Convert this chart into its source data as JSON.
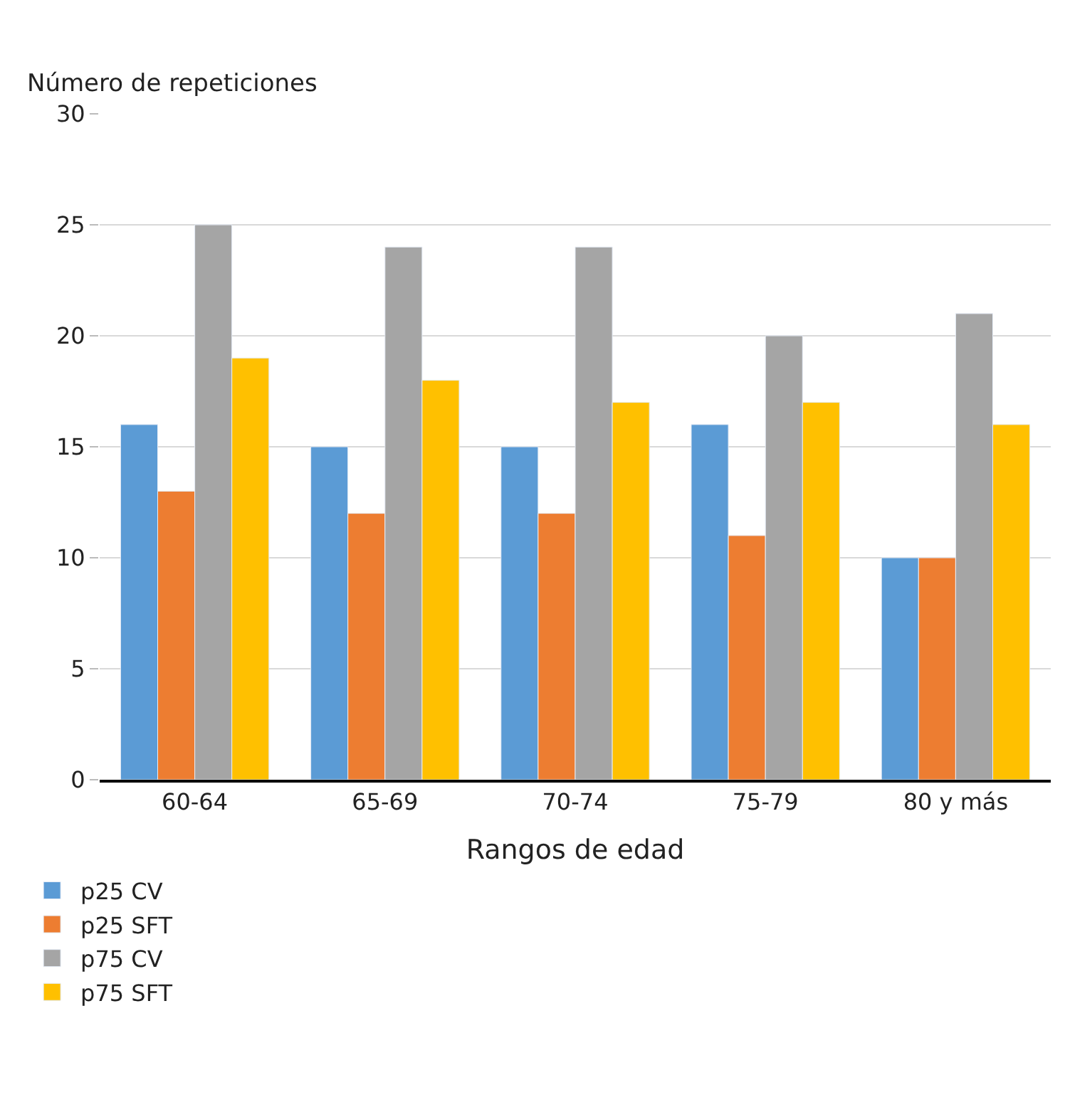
{
  "chart_data": {
    "type": "bar",
    "ylabel": "Número de repeticiones",
    "xlabel": "Rangos de edad",
    "categories": [
      "60-64",
      "65-69",
      "70-74",
      "75-79",
      "80 y más"
    ],
    "series": [
      {
        "name": "p25 CV",
        "color": "#5b9bd5",
        "values": [
          16,
          15,
          15,
          16,
          10
        ]
      },
      {
        "name": "p25 SFT",
        "color": "#ed7d31",
        "values": [
          13,
          12,
          12,
          11,
          10
        ]
      },
      {
        "name": "p75 CV",
        "color": "#a5a5a5",
        "values": [
          25,
          24,
          24,
          20,
          21
        ]
      },
      {
        "name": "p75 SFT",
        "color": "#ffc000",
        "values": [
          19,
          18,
          17,
          17,
          16
        ]
      }
    ],
    "ylim": [
      0,
      30
    ],
    "yticks": [
      0,
      5,
      10,
      15,
      20,
      25,
      30
    ],
    "grid": "y",
    "legend": "bottom left"
  }
}
